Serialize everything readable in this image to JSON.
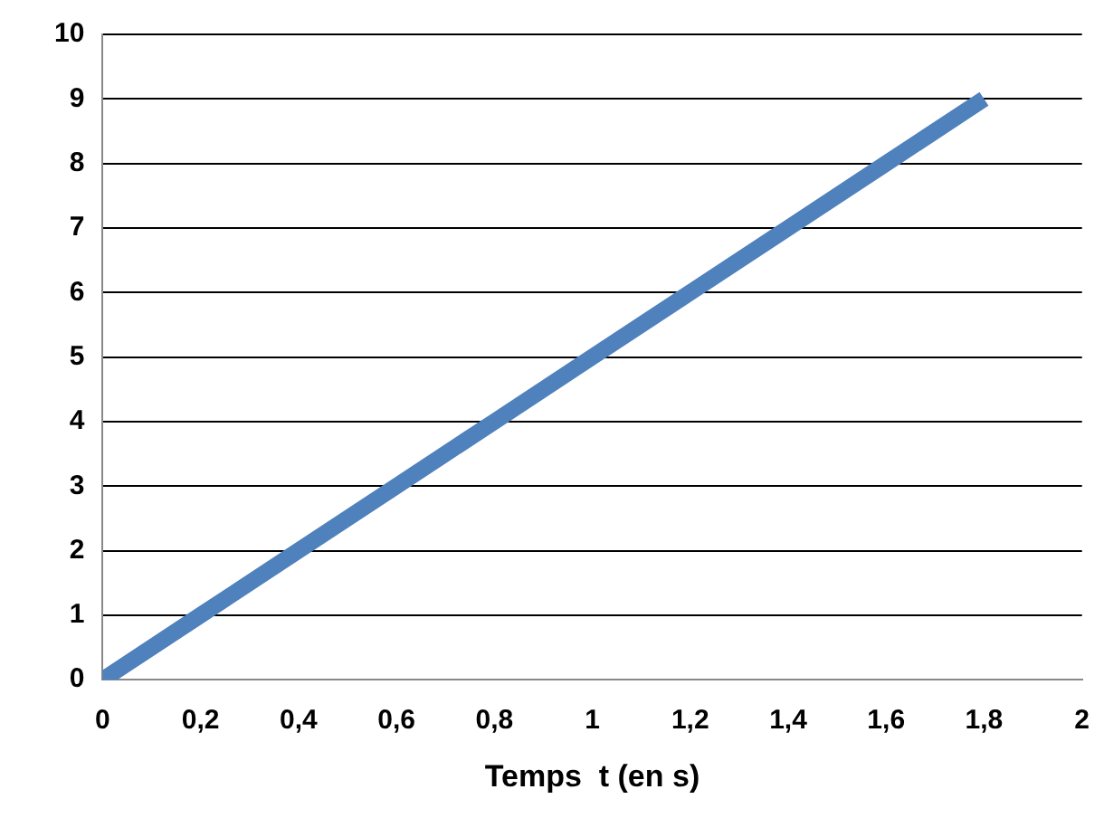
{
  "chart_data": {
    "type": "line",
    "xlabel": "Temps  t (en s)",
    "x": [
      0,
      0.2,
      0.4,
      0.6,
      0.8,
      1,
      1.2,
      1.4,
      1.6,
      1.8
    ],
    "series": [
      {
        "color": "#4f81bd",
        "values": [
          0,
          1,
          2,
          3,
          4,
          5,
          6,
          7,
          8,
          9
        ]
      }
    ],
    "xlim": [
      0,
      2
    ],
    "xticks": [
      0,
      {
        "value": 0.2,
        "label": "0,2"
      },
      {
        "value": 0.4,
        "label": "0,4"
      },
      {
        "value": 0.6,
        "label": "0,6"
      },
      {
        "value": 0.8,
        "label": "0,8"
      },
      1,
      {
        "value": 1.2,
        "label": "1,2"
      },
      {
        "value": 1.4,
        "label": "1,4"
      },
      {
        "value": 1.6,
        "label": "1,6"
      },
      {
        "value": 1.8,
        "label": "1,8"
      },
      2
    ],
    "ylim": [
      0,
      10
    ],
    "yticks": [
      0,
      1,
      2,
      3,
      4,
      5,
      6,
      7,
      8,
      9,
      10
    ],
    "grid": "y",
    "legend": false,
    "marker": "none",
    "line_style": "solid"
  }
}
